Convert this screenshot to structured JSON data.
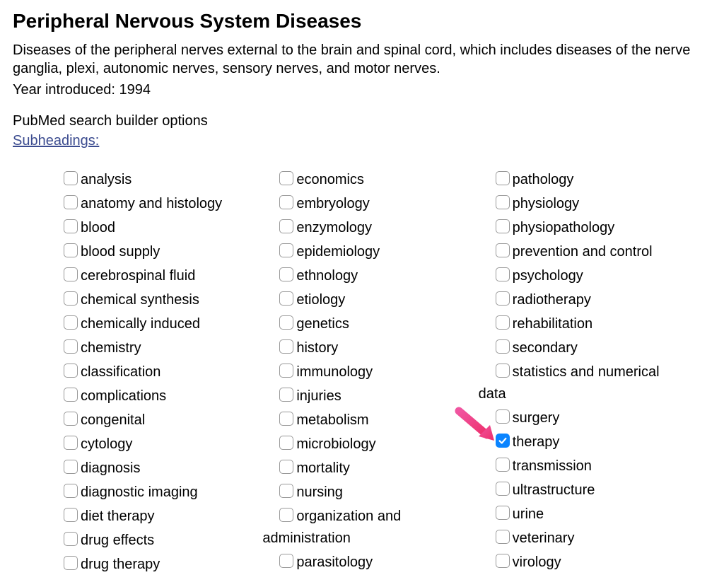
{
  "header": {
    "title": "Peripheral Nervous System Diseases",
    "description": "Diseases of the peripheral nerves external to the brain and spinal cord, which includes diseases of the nerve ganglia, plexi, autonomic nerves, sensory nerves, and motor nerves.",
    "year_introduced": "Year introduced: 1994",
    "builder_label": "PubMed search builder options",
    "subheadings_link": "Subheadings:"
  },
  "columns": [
    {
      "items": [
        {
          "label": "analysis",
          "checked": false
        },
        {
          "label": "anatomy and histology",
          "checked": false
        },
        {
          "label": "blood",
          "checked": false
        },
        {
          "label": "blood supply",
          "checked": false
        },
        {
          "label": "cerebrospinal fluid",
          "checked": false
        },
        {
          "label": "chemical synthesis",
          "checked": false
        },
        {
          "label": "chemically induced",
          "checked": false
        },
        {
          "label": "chemistry",
          "checked": false
        },
        {
          "label": "classification",
          "checked": false
        },
        {
          "label": "complications",
          "checked": false
        },
        {
          "label": "congenital",
          "checked": false
        },
        {
          "label": "cytology",
          "checked": false
        },
        {
          "label": "diagnosis",
          "checked": false
        },
        {
          "label": "diagnostic imaging",
          "checked": false
        },
        {
          "label": "diet therapy",
          "checked": false
        },
        {
          "label": "drug effects",
          "checked": false
        },
        {
          "label": "drug therapy",
          "checked": false
        }
      ]
    },
    {
      "items": [
        {
          "label": "economics",
          "checked": false
        },
        {
          "label": "embryology",
          "checked": false
        },
        {
          "label": "enzymology",
          "checked": false
        },
        {
          "label": "epidemiology",
          "checked": false
        },
        {
          "label": "ethnology",
          "checked": false
        },
        {
          "label": "etiology",
          "checked": false
        },
        {
          "label": "genetics",
          "checked": false
        },
        {
          "label": "history",
          "checked": false
        },
        {
          "label": "immunology",
          "checked": false
        },
        {
          "label": "injuries",
          "checked": false
        },
        {
          "label": "metabolism",
          "checked": false
        },
        {
          "label": "microbiology",
          "checked": false
        },
        {
          "label": "mortality",
          "checked": false
        },
        {
          "label": "nursing",
          "checked": false
        },
        {
          "label": "organization and administration",
          "checked": false,
          "wrap": true,
          "line1": "organization and",
          "line2": "administration"
        },
        {
          "label": "parasitology",
          "checked": false
        }
      ]
    },
    {
      "items": [
        {
          "label": "pathology",
          "checked": false
        },
        {
          "label": "physiology",
          "checked": false
        },
        {
          "label": "physiopathology",
          "checked": false
        },
        {
          "label": "prevention and control",
          "checked": false
        },
        {
          "label": "psychology",
          "checked": false
        },
        {
          "label": "radiotherapy",
          "checked": false
        },
        {
          "label": "rehabilitation",
          "checked": false
        },
        {
          "label": "secondary",
          "checked": false
        },
        {
          "label": "statistics and numerical data",
          "checked": false,
          "wrap": true,
          "line1": "statistics and numerical",
          "line2": "data"
        },
        {
          "label": "surgery",
          "checked": false
        },
        {
          "label": "therapy",
          "checked": true,
          "arrow": true
        },
        {
          "label": "transmission",
          "checked": false
        },
        {
          "label": "ultrastructure",
          "checked": false
        },
        {
          "label": "urine",
          "checked": false
        },
        {
          "label": "veterinary",
          "checked": false
        },
        {
          "label": "virology",
          "checked": false
        }
      ]
    }
  ],
  "styling": {
    "background_color": "#ffffff",
    "text_color": "#000000",
    "link_color": "#3b4b8f",
    "checkbox_border_color": "#999999",
    "checkbox_checked_bg": "#0a84ff",
    "arrow_color": "#ef3d7a",
    "title_fontsize": 28,
    "body_fontsize": 20,
    "checkbox_size": 20,
    "checkbox_border_radius": 5
  }
}
